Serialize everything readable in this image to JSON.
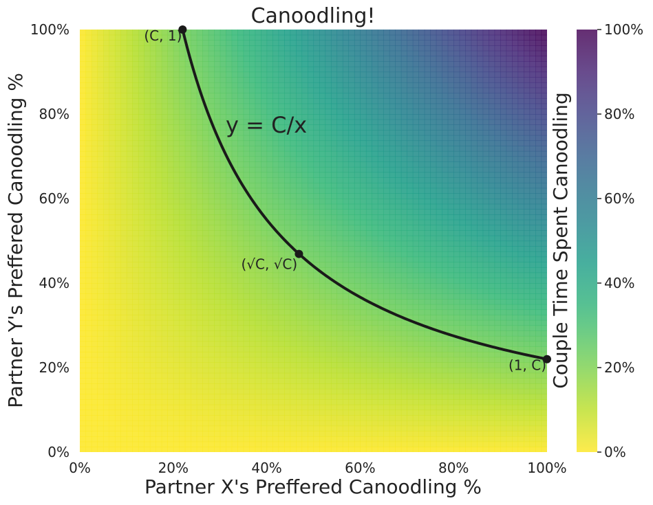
{
  "chart_data": {
    "type": "heatmap",
    "title": "Canoodling!",
    "xlabel": "Partner X's Preffered Canoodling %",
    "ylabel": "Partner Y's Preffered Canoodling %",
    "colorbar_label": "Couple Time Spent Canoodling",
    "xlim": [
      0,
      1
    ],
    "ylim": [
      0,
      1
    ],
    "x_ticks": [
      "0%",
      "20%",
      "40%",
      "60%",
      "80%",
      "100%"
    ],
    "y_ticks": [
      "0%",
      "20%",
      "40%",
      "60%",
      "80%",
      "100%"
    ],
    "colorbar_ticks": [
      "0%",
      "20%",
      "40%",
      "60%",
      "80%",
      "100%"
    ],
    "colormap": "viridis_r",
    "value_function": "x*y",
    "colorbar_range": [
      0,
      1
    ],
    "grid": false,
    "curve": {
      "label": "y = C/x",
      "C": 0.22,
      "color": "#1a1a1a"
    },
    "points": [
      {
        "label": "(C, 1)",
        "x": 0.22,
        "y": 1.0
      },
      {
        "label": "(√C, √C)",
        "x": 0.469,
        "y": 0.469
      },
      {
        "label": "(1, C)",
        "x": 1.0,
        "y": 0.22
      }
    ],
    "colors": {
      "viridis": [
        "#440154",
        "#482878",
        "#3e4989",
        "#31688e",
        "#26828e",
        "#1f9e89",
        "#35b779",
        "#6ece58",
        "#b5de2b",
        "#fde725"
      ]
    }
  }
}
